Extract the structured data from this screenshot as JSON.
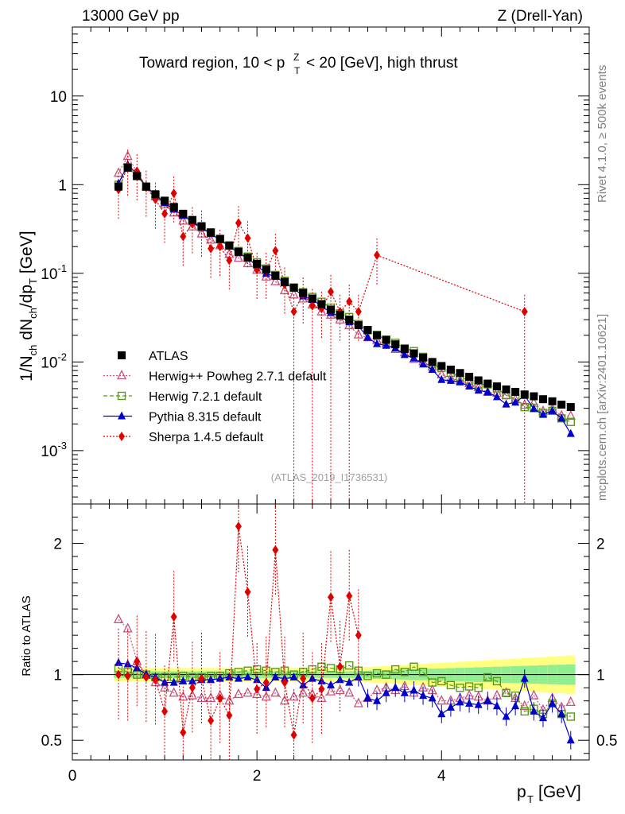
{
  "header": {
    "left": "13000 GeV pp",
    "right": "Z (Drell-Yan)"
  },
  "side": {
    "rivet": "Rivet 4.1.0, ≥ 500k events",
    "mcplots": "mcplots.cern.ch [arXiv:2401.10621]"
  },
  "watermark": "(ATLAS_2019_I1736531)",
  "chart_data": {
    "type": "scatter",
    "title": "Toward region, 10 < p_T^Z < 20 [GeV], high thrust",
    "xlabel": "p_T [GeV]",
    "ylabel": "1/N_ch dN_ch/dp_T [GeV]",
    "ratio_ylabel": "Ratio to ATLAS",
    "xlim": [
      0,
      5.6
    ],
    "ylim": [
      0.00025,
      60
    ],
    "ratio_ylim": [
      0.35,
      2.3
    ],
    "x_ticks": [
      "0",
      "2",
      "4"
    ],
    "y_ticks": [
      "10^-3",
      "10^-2",
      "10^-1",
      "1",
      "10"
    ],
    "ratio_ticks": [
      "0.5",
      "1",
      "2"
    ],
    "x": [
      0.5,
      0.6,
      0.7,
      0.8,
      0.9,
      1.0,
      1.1,
      1.2,
      1.3,
      1.4,
      1.5,
      1.6,
      1.7,
      1.8,
      1.9,
      2.0,
      2.1,
      2.2,
      2.3,
      2.4,
      2.5,
      2.6,
      2.7,
      2.8,
      2.9,
      3.0,
      3.1,
      3.2,
      3.3,
      3.4,
      3.5,
      3.6,
      3.7,
      3.8,
      3.9,
      4.0,
      4.1,
      4.2,
      4.3,
      4.4,
      4.5,
      4.6,
      4.7,
      4.8,
      4.9,
      5.0,
      5.1,
      5.2,
      5.3,
      5.4
    ],
    "series": [
      {
        "name": "ATLAS",
        "color": "#000000",
        "marker": "square",
        "values": [
          0.95,
          1.55,
          1.25,
          0.95,
          0.78,
          0.66,
          0.56,
          0.47,
          0.4,
          0.34,
          0.29,
          0.245,
          0.205,
          0.175,
          0.15,
          0.128,
          0.11,
          0.094,
          0.08,
          0.069,
          0.06,
          0.052,
          0.045,
          0.039,
          0.034,
          0.03,
          0.026,
          0.023,
          0.02,
          0.0178,
          0.0158,
          0.014,
          0.0125,
          0.0112,
          0.01,
          0.009,
          0.0082,
          0.0075,
          0.0068,
          0.0062,
          0.0057,
          0.0053,
          0.0049,
          0.0046,
          0.0043,
          0.0041,
          0.0038,
          0.0036,
          0.0033,
          0.0031
        ]
      },
      {
        "name": "Herwig++ Powheg 2.7.1 default",
        "color": "#c8507a",
        "marker": "triangle-open",
        "style": "dotted",
        "ratio": [
          1.42,
          1.35,
          1.1,
          1.0,
          0.94,
          0.9,
          0.86,
          0.83,
          0.84,
          0.82,
          0.82,
          0.84,
          0.8,
          0.85,
          0.86,
          0.85,
          0.83,
          0.86,
          0.8,
          0.83,
          0.86,
          0.85,
          0.82,
          0.87,
          0.88,
          0.86,
          0.78,
          0.82,
          0.88,
          0.9,
          0.88,
          0.91,
          0.86,
          0.9,
          0.88,
          0.8,
          0.8,
          0.82,
          0.84,
          0.83,
          0.8,
          0.84,
          0.86,
          0.82,
          0.76,
          0.84,
          0.73,
          0.82,
          0.75,
          0.79
        ]
      },
      {
        "name": "Herwig 7.2.1 default",
        "color": "#5a9a1a",
        "marker": "square-open",
        "style": "dashed",
        "ratio": [
          1.05,
          1.02,
          1.0,
          1.0,
          0.98,
          0.98,
          0.98,
          0.99,
          0.98,
          0.98,
          0.99,
          0.99,
          1.01,
          1.02,
          1.03,
          1.04,
          1.03,
          1.02,
          1.03,
          1.0,
          1.02,
          1.04,
          1.06,
          1.05,
          1.04,
          1.07,
          1.03,
          0.99,
          1.01,
          1.0,
          1.04,
          1.02,
          1.06,
          1.02,
          0.94,
          0.95,
          0.92,
          0.9,
          0.91,
          0.9,
          0.98,
          0.95,
          0.86,
          0.84,
          0.72,
          0.74,
          0.7,
          0.78,
          0.7,
          0.68
        ]
      },
      {
        "name": "Pythia 8.315 default",
        "color": "#0000cc",
        "marker": "triangle",
        "style": "solid",
        "ratio": [
          1.09,
          1.08,
          1.05,
          1.0,
          0.98,
          0.94,
          0.94,
          0.95,
          0.95,
          0.96,
          0.96,
          0.97,
          0.98,
          0.97,
          0.98,
          0.96,
          0.9,
          0.98,
          0.97,
          0.98,
          0.92,
          0.97,
          0.95,
          0.92,
          0.96,
          0.94,
          0.98,
          0.82,
          0.8,
          0.86,
          0.9,
          0.86,
          0.88,
          0.84,
          0.82,
          0.7,
          0.75,
          0.79,
          0.78,
          0.77,
          0.8,
          0.76,
          0.68,
          0.76,
          0.97,
          0.72,
          0.67,
          0.78,
          0.7,
          0.5
        ]
      },
      {
        "name": "Sherpa 1.4.5 default",
        "color": "#e00000",
        "marker": "diamond",
        "style": "dotted",
        "points": [
          [
            0.5,
            0.88
          ],
          [
            0.6,
            1.6
          ],
          [
            0.7,
            1.42
          ],
          [
            0.8,
            0.93
          ],
          [
            0.9,
            0.68
          ],
          [
            1.0,
            0.47
          ],
          [
            1.1,
            0.8
          ],
          [
            1.2,
            0.26
          ],
          [
            1.3,
            0.36
          ],
          [
            1.4,
            0.33
          ],
          [
            1.5,
            0.19
          ],
          [
            1.6,
            0.2
          ],
          [
            1.7,
            0.14
          ],
          [
            1.8,
            0.37
          ],
          [
            1.9,
            0.25
          ],
          [
            2.0,
            0.11
          ],
          [
            2.1,
            0.11
          ],
          [
            2.2,
            0.18
          ],
          [
            2.3,
            0.075
          ],
          [
            2.4,
            0.037
          ],
          [
            2.5,
            0.058
          ],
          [
            2.6,
            0.043
          ],
          [
            2.7,
            0.04
          ],
          [
            2.8,
            0.062
          ],
          [
            2.9,
            0.037
          ],
          [
            3.0,
            0.048
          ],
          [
            3.1,
            0.037
          ],
          [
            3.3,
            0.16
          ],
          [
            4.9,
            0.037
          ]
        ],
        "ratio_points": [
          [
            0.5,
            1.0
          ],
          [
            0.6,
            0.99
          ],
          [
            0.7,
            1.1
          ],
          [
            0.8,
            0.98
          ],
          [
            0.9,
            0.96
          ],
          [
            1.0,
            0.72
          ],
          [
            1.1,
            1.44
          ],
          [
            1.2,
            0.56
          ],
          [
            1.3,
            0.9
          ],
          [
            1.4,
            0.97
          ],
          [
            1.5,
            0.65
          ],
          [
            1.6,
            0.82
          ],
          [
            1.7,
            0.69
          ],
          [
            1.8,
            2.13
          ],
          [
            1.9,
            1.63
          ],
          [
            2.0,
            0.89
          ],
          [
            2.1,
            0.94
          ],
          [
            2.2,
            1.95
          ],
          [
            2.3,
            0.94
          ],
          [
            2.4,
            0.54
          ],
          [
            2.5,
            0.97
          ],
          [
            2.6,
            0.82
          ],
          [
            2.7,
            0.89
          ],
          [
            2.8,
            1.59
          ],
          [
            2.9,
            1.06
          ],
          [
            3.0,
            1.6
          ],
          [
            3.1,
            1.3
          ]
        ]
      }
    ],
    "bands": {
      "inner_color": "#90ee90",
      "outer_color": "#ffff80"
    }
  }
}
